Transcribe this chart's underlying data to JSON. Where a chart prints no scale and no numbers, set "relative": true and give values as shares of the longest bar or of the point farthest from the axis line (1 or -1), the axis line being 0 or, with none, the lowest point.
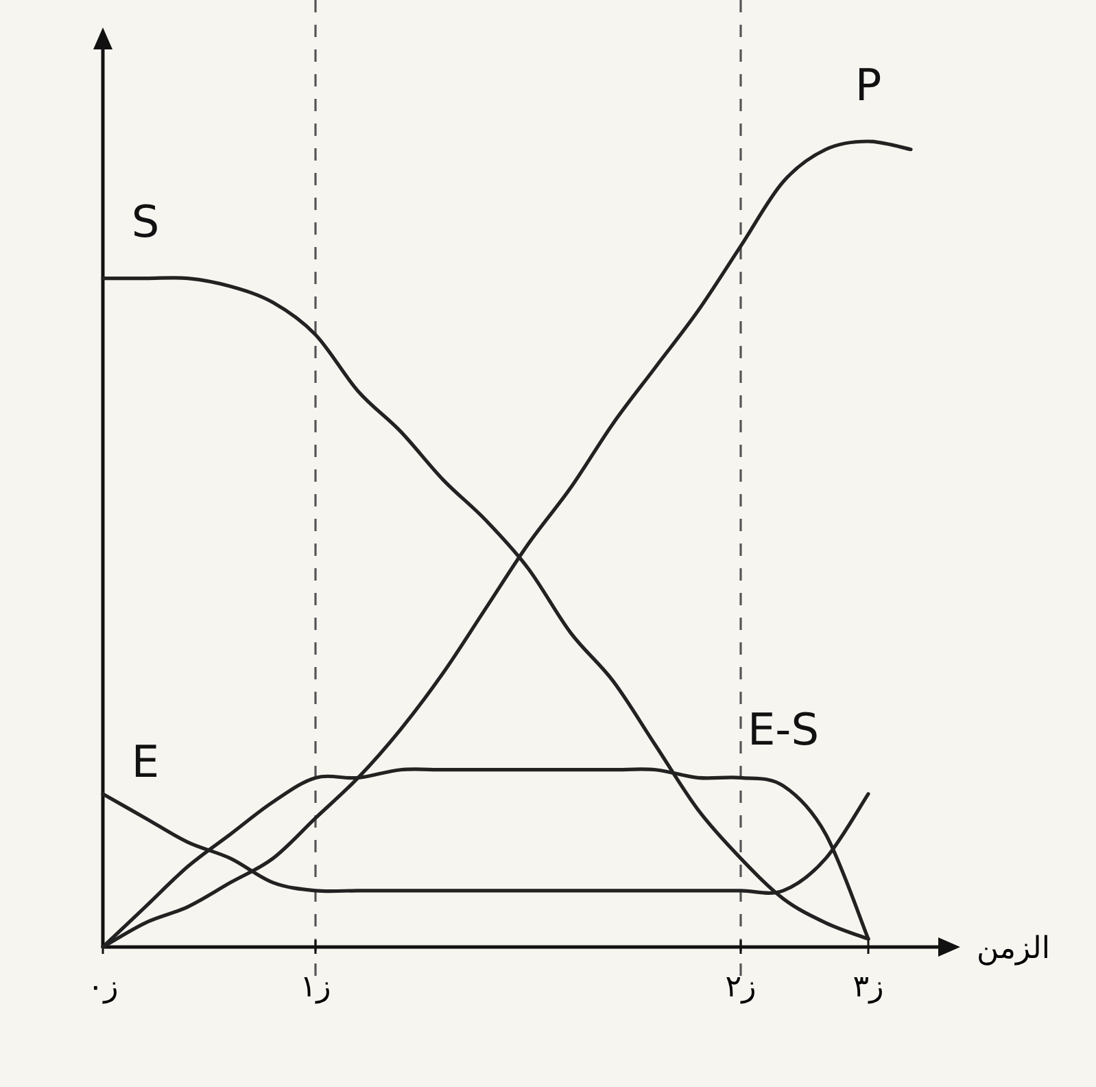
{
  "chart_data": {
    "type": "line",
    "relative": true,
    "xlabel": "الزمن",
    "categories": [
      "ز٠",
      null,
      null,
      null,
      null,
      "ز١",
      null,
      null,
      null,
      null,
      null,
      null,
      null,
      null,
      null,
      "ز٢",
      null,
      null,
      "ز٣",
      null
    ],
    "ref_lines": [
      {
        "axis": "x",
        "value": "ز١",
        "color": "#555555",
        "line_style": "dashed"
      },
      {
        "axis": "x",
        "value": "ز٢",
        "color": "#555555",
        "line_style": "dashed"
      }
    ],
    "grid": false,
    "legend": false,
    "marker": "none",
    "line_style": "solid",
    "series": [
      {
        "name": "S",
        "color": "#222222",
        "values": [
          0.83,
          0.83,
          0.83,
          0.82,
          0.8,
          0.76,
          0.69,
          0.64,
          0.58,
          0.53,
          0.47,
          0.39,
          0.33,
          0.25,
          0.17,
          0.11,
          0.06,
          0.03,
          0.01,
          null
        ]
      },
      {
        "name": "P",
        "color": "#222222",
        "values": [
          0,
          0.03,
          0.05,
          0.08,
          0.11,
          0.16,
          0.21,
          0.27,
          0.34,
          0.42,
          0.5,
          0.57,
          0.65,
          0.72,
          0.79,
          0.87,
          0.95,
          0.99,
          1.0,
          0.99
        ]
      },
      {
        "name": "E-S",
        "color": "#222222",
        "values": [
          0,
          0.05,
          0.1,
          0.14,
          0.18,
          0.21,
          0.21,
          0.22,
          0.22,
          0.22,
          0.22,
          0.22,
          0.22,
          0.22,
          0.21,
          0.21,
          0.2,
          0.14,
          0.01,
          null
        ]
      },
      {
        "name": "E",
        "color": "#222222",
        "values": [
          0.19,
          0.16,
          0.13,
          0.11,
          0.08,
          0.07,
          0.07,
          0.07,
          0.07,
          0.07,
          0.07,
          0.07,
          0.07,
          0.07,
          0.07,
          0.07,
          0.07,
          0.11,
          0.19,
          null
        ]
      }
    ]
  }
}
